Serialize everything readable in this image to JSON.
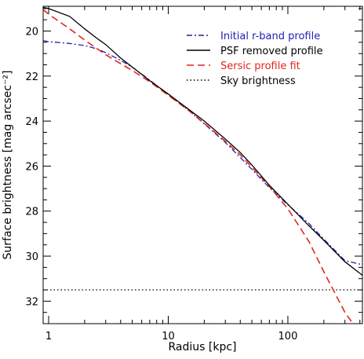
{
  "chart_data": {
    "type": "line",
    "xlabel": "Radius [kpc]",
    "ylabel": "Surface brightness [mag arcsec⁻²]",
    "x_scale": "log",
    "xlim": [
      0.9,
      420
    ],
    "ylim": [
      33,
      18.9
    ],
    "y_inverted": true,
    "x_ticks": [
      {
        "value": 1,
        "label": "1"
      },
      {
        "value": 10,
        "label": "10"
      },
      {
        "value": 100,
        "label": "100"
      }
    ],
    "y_ticks": [
      {
        "value": 20,
        "label": "20"
      },
      {
        "value": 22,
        "label": "22"
      },
      {
        "value": 24,
        "label": "24"
      },
      {
        "value": 26,
        "label": "26"
      },
      {
        "value": 28,
        "label": "28"
      },
      {
        "value": 30,
        "label": "30"
      },
      {
        "value": 32,
        "label": "32"
      }
    ],
    "legend_position": "top-right",
    "series": [
      {
        "name": "Initial r-band profile",
        "color": "#1f1fb4",
        "style": "dashdot",
        "points": [
          [
            0.9,
            20.43
          ],
          [
            1,
            20.47
          ],
          [
            1.5,
            20.55
          ],
          [
            2,
            20.65
          ],
          [
            2.5,
            20.78
          ],
          [
            3,
            20.96
          ],
          [
            4,
            21.3
          ],
          [
            5,
            21.6
          ],
          [
            7,
            22.18
          ],
          [
            10,
            22.82
          ],
          [
            15,
            23.55
          ],
          [
            20,
            24.12
          ],
          [
            30,
            24.95
          ],
          [
            40,
            25.62
          ],
          [
            50,
            26.15
          ],
          [
            70,
            26.95
          ],
          [
            100,
            27.72
          ],
          [
            150,
            28.55
          ],
          [
            200,
            29.25
          ],
          [
            300,
            30.2
          ],
          [
            420,
            30.38
          ]
        ]
      },
      {
        "name": "PSF removed profile",
        "color": "#000000",
        "style": "solid",
        "points": [
          [
            0.9,
            18.95
          ],
          [
            1,
            19.0
          ],
          [
            1.5,
            19.35
          ],
          [
            2,
            19.9
          ],
          [
            2.5,
            20.3
          ],
          [
            3,
            20.6
          ],
          [
            4,
            21.2
          ],
          [
            5,
            21.6
          ],
          [
            7,
            22.2
          ],
          [
            10,
            22.8
          ],
          [
            15,
            23.5
          ],
          [
            20,
            24.0
          ],
          [
            30,
            24.8
          ],
          [
            40,
            25.4
          ],
          [
            50,
            25.95
          ],
          [
            70,
            26.85
          ],
          [
            100,
            27.7
          ],
          [
            150,
            28.65
          ],
          [
            200,
            29.3
          ],
          [
            300,
            30.25
          ],
          [
            420,
            30.85
          ]
        ]
      },
      {
        "name": "Sersic profile fit",
        "color": "#e0261c",
        "style": "dashed",
        "points": [
          [
            0.9,
            19.05
          ],
          [
            1,
            19.25
          ],
          [
            1.5,
            19.9
          ],
          [
            2,
            20.4
          ],
          [
            3,
            21.05
          ],
          [
            4,
            21.45
          ],
          [
            5,
            21.75
          ],
          [
            7,
            22.25
          ],
          [
            10,
            22.85
          ],
          [
            15,
            23.55
          ],
          [
            20,
            24.1
          ],
          [
            30,
            24.9
          ],
          [
            40,
            25.5
          ],
          [
            50,
            26.05
          ],
          [
            70,
            26.9
          ],
          [
            100,
            27.9
          ],
          [
            150,
            29.35
          ],
          [
            200,
            30.7
          ],
          [
            300,
            32.5
          ],
          [
            350,
            33.0
          ]
        ]
      },
      {
        "name": "Sky brightness",
        "color": "#000000",
        "style": "dotted",
        "points": [
          [
            0.9,
            31.5
          ],
          [
            420,
            31.5
          ]
        ]
      }
    ]
  }
}
